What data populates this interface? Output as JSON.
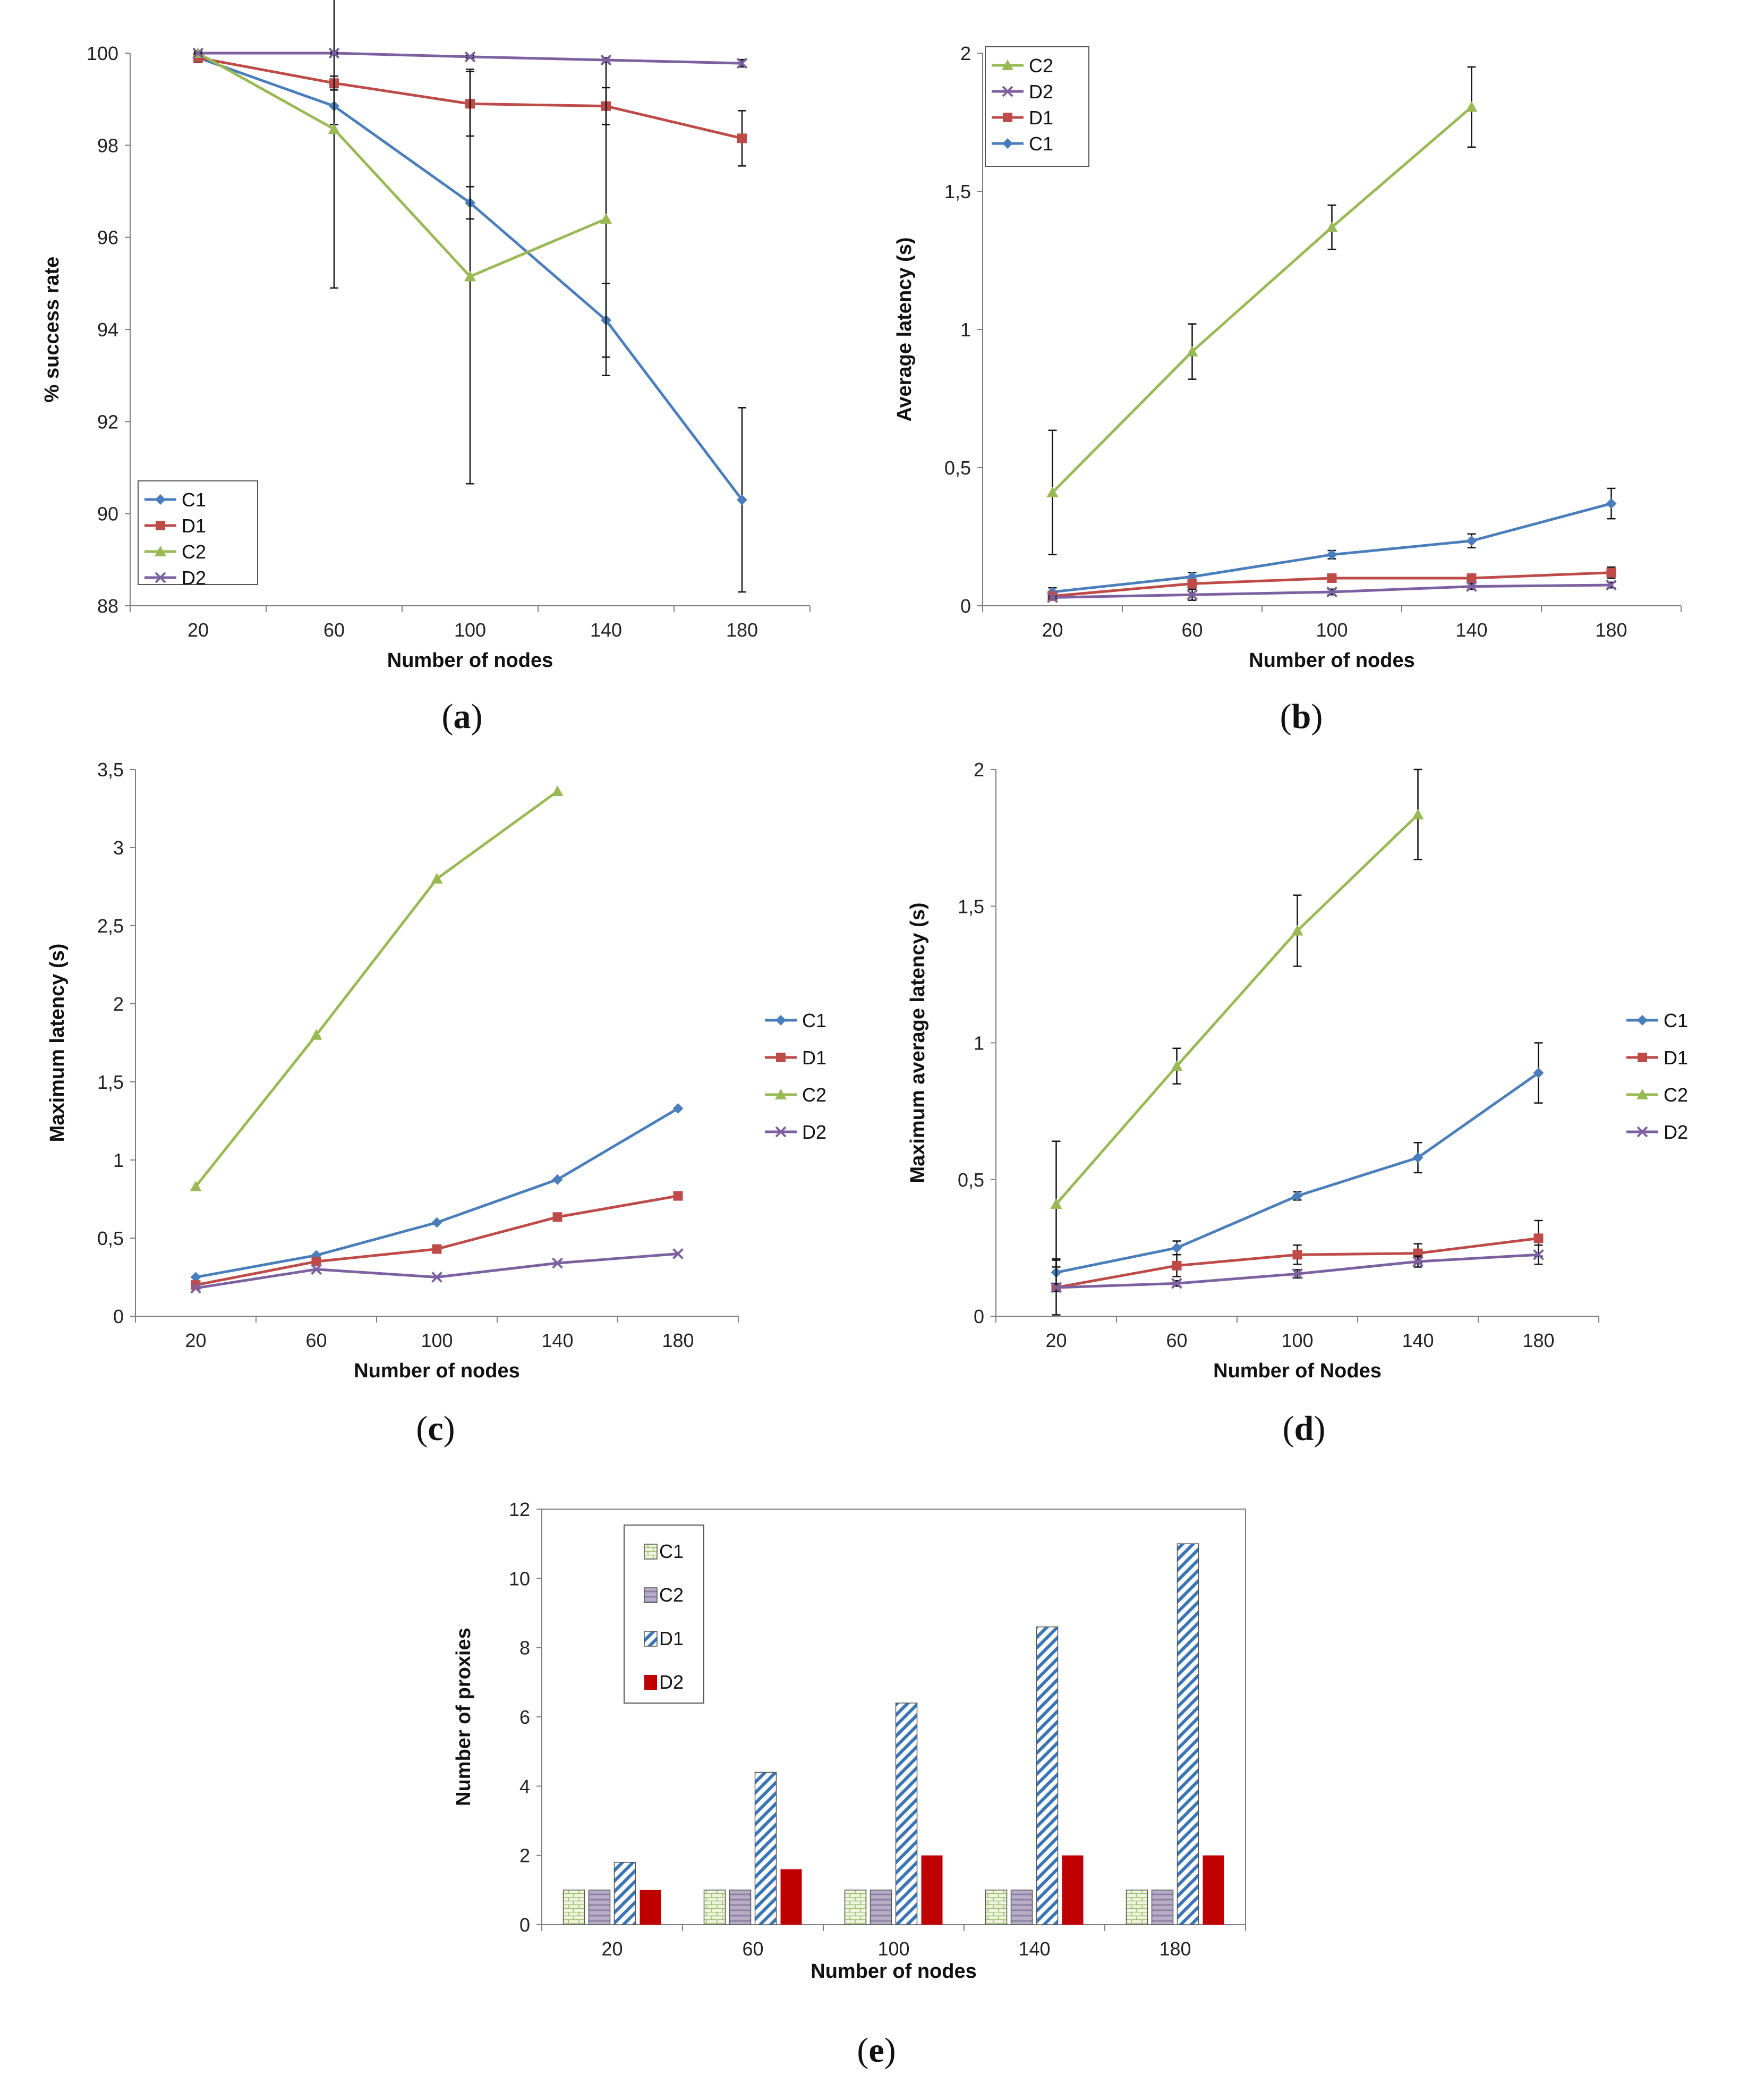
{
  "colors": {
    "C1": "#4a7ebb",
    "D1": "#be4b48",
    "C2": "#98b954",
    "D2": "#7d60a0",
    "bar_C1": "#e8f2d8",
    "bar_C2": "#a095b0",
    "bar_D1": "#2e6fb3",
    "bar_D2": "#c00000"
  },
  "chart_data": [
    {
      "id": "a",
      "caption": "a",
      "type": "line",
      "xlabel": "Number of nodes",
      "ylabel": "% success rate",
      "categories": [
        "20",
        "60",
        "100",
        "140",
        "180"
      ],
      "ylim": [
        88,
        100
      ],
      "yticks": [
        "88",
        "90",
        "92",
        "94",
        "96",
        "98",
        "100"
      ],
      "legend_position": "bottom-left",
      "legend": [
        "C1",
        "D1",
        "C2",
        "D2"
      ],
      "series": [
        {
          "name": "C1",
          "values": [
            99.9,
            98.85,
            96.75,
            94.2,
            90.3
          ],
          "err": [
            0.1,
            0.4,
            0.35,
            0.8,
            2.0
          ]
        },
        {
          "name": "D1",
          "values": [
            99.9,
            99.35,
            98.9,
            98.85,
            98.15
          ],
          "err": [
            0.1,
            0.15,
            0.7,
            0.4,
            0.6
          ]
        },
        {
          "name": "C2",
          "values": [
            100,
            98.35,
            95.15,
            96.4,
            null
          ],
          "err": [
            0.05,
            3.45,
            4.5,
            3.4,
            null
          ]
        },
        {
          "name": "D2",
          "values": [
            100,
            100,
            99.92,
            99.85,
            99.78
          ],
          "err": [
            0.02,
            0.02,
            0.03,
            0.05,
            0.08
          ]
        }
      ]
    },
    {
      "id": "b",
      "caption": "b",
      "type": "line",
      "xlabel": "Number of nodes",
      "ylabel": "Average latency (s)",
      "categories": [
        "20",
        "60",
        "100",
        "140",
        "180"
      ],
      "ylim": [
        0,
        2
      ],
      "yticks": [
        "0",
        "0,5",
        "1",
        "1,5",
        "2"
      ],
      "legend_position": "top-left",
      "legend": [
        "C2",
        "D2",
        "D1",
        "C1"
      ],
      "series": [
        {
          "name": "C1",
          "values": [
            0.05,
            0.105,
            0.185,
            0.235,
            0.37
          ],
          "err": [
            0.015,
            0.015,
            0.015,
            0.025,
            0.055
          ]
        },
        {
          "name": "D1",
          "values": [
            0.035,
            0.08,
            0.1,
            0.1,
            0.12
          ],
          "err": [
            0.01,
            0.01,
            0.01,
            0.01,
            0.02
          ]
        },
        {
          "name": "C2",
          "values": [
            0.41,
            0.92,
            1.37,
            1.805,
            null
          ],
          "err": [
            0.225,
            0.1,
            0.08,
            0.145,
            null
          ]
        },
        {
          "name": "D2",
          "values": [
            0.03,
            0.04,
            0.05,
            0.07,
            0.075
          ],
          "err": [
            0.005,
            0.02,
            0.01,
            0.01,
            0.01
          ]
        }
      ]
    },
    {
      "id": "c",
      "caption": "c",
      "type": "line",
      "xlabel": "Number of nodes",
      "ylabel": "Maximum latency (s)",
      "categories": [
        "20",
        "60",
        "100",
        "140",
        "180"
      ],
      "ylim": [
        0,
        3.5
      ],
      "yticks": [
        "0",
        "0,5",
        "1",
        "1,5",
        "2",
        "2,5",
        "3",
        "3,5"
      ],
      "legend_position": "right",
      "legend": [
        "C1",
        "D1",
        "C2",
        "D2"
      ],
      "series": [
        {
          "name": "C1",
          "values": [
            0.25,
            0.39,
            0.6,
            0.875,
            1.33
          ]
        },
        {
          "name": "D1",
          "values": [
            0.2,
            0.35,
            0.43,
            0.635,
            0.77
          ]
        },
        {
          "name": "C2",
          "values": [
            0.83,
            1.8,
            2.8,
            3.36,
            null
          ]
        },
        {
          "name": "D2",
          "values": [
            0.18,
            0.3,
            0.25,
            0.34,
            0.4
          ]
        }
      ]
    },
    {
      "id": "d",
      "caption": "d",
      "type": "line",
      "xlabel": "Number of Nodes",
      "ylabel": "Maximum average latency (s)",
      "categories": [
        "20",
        "60",
        "100",
        "140",
        "180"
      ],
      "ylim": [
        0,
        2
      ],
      "yticks": [
        "0",
        "0,5",
        "1",
        "1,5",
        "2"
      ],
      "legend_position": "right",
      "legend": [
        "C1",
        "D1",
        "C2",
        "D2"
      ],
      "series": [
        {
          "name": "C1",
          "values": [
            0.16,
            0.25,
            0.44,
            0.58,
            0.89
          ],
          "err": [
            0.05,
            0.025,
            0.015,
            0.055,
            0.11
          ]
        },
        {
          "name": "D1",
          "values": [
            0.105,
            0.185,
            0.225,
            0.23,
            0.285
          ],
          "err": [
            0.1,
            0.04,
            0.035,
            0.035,
            0.065
          ]
        },
        {
          "name": "C2",
          "values": [
            0.41,
            0.915,
            1.41,
            1.835,
            null
          ],
          "err": [
            0.23,
            0.065,
            0.13,
            0.165,
            null
          ]
        },
        {
          "name": "D2",
          "values": [
            0.105,
            0.12,
            0.155,
            0.2,
            0.225
          ],
          "err": [
            0.015,
            0.01,
            0.015,
            0.02,
            0.035
          ]
        }
      ]
    },
    {
      "id": "e",
      "caption": "e",
      "type": "bar",
      "xlabel": "Number of nodes",
      "ylabel": "Number of proxies",
      "categories": [
        "20",
        "60",
        "100",
        "140",
        "180"
      ],
      "ylim": [
        0,
        12
      ],
      "yticks": [
        "0",
        "2",
        "4",
        "6",
        "8",
        "10",
        "12"
      ],
      "legend_position": "top-left",
      "legend": [
        "C1",
        "C2",
        "D1",
        "D2"
      ],
      "series": [
        {
          "name": "C1",
          "values": [
            1,
            1,
            1,
            1,
            1
          ]
        },
        {
          "name": "C2",
          "values": [
            1,
            1,
            1,
            1,
            1
          ]
        },
        {
          "name": "D1",
          "values": [
            1.8,
            4.4,
            6.4,
            8.6,
            11
          ]
        },
        {
          "name": "D2",
          "values": [
            1,
            1.6,
            2,
            2,
            2
          ]
        }
      ]
    }
  ]
}
